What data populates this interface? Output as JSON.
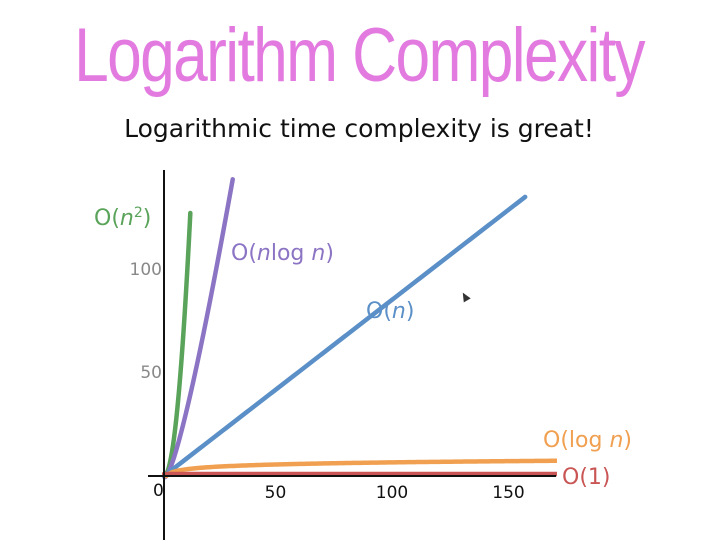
{
  "title": "Logarithm Complexity",
  "subtitle": "Logarithmic time complexity is great!",
  "colors": {
    "title": "#e27ae0",
    "axis": "#111111",
    "tick_text": "#888888"
  },
  "chart_data": {
    "type": "line",
    "title": "",
    "xlabel": "",
    "ylabel": "",
    "xlim": [
      0,
      170
    ],
    "ylim": [
      0,
      135
    ],
    "grid": false,
    "legend": "none",
    "x_ticks": [
      {
        "value": 0,
        "label": "0"
      },
      {
        "value": 50,
        "label": "50"
      },
      {
        "value": 100,
        "label": "100"
      },
      {
        "value": 150,
        "label": "150"
      }
    ],
    "y_ticks": [
      {
        "value": 50,
        "label": "50"
      },
      {
        "value": 100,
        "label": "100"
      }
    ],
    "series": [
      {
        "label_base": "O(",
        "label_var": "n",
        "label_sup": "2",
        "label_tail": ")",
        "color": "#5aa35a",
        "fn": "n2",
        "x": [
          0,
          2,
          4,
          6,
          8,
          10,
          11.3
        ],
        "y": [
          0,
          4,
          16,
          36,
          64,
          100,
          128
        ]
      },
      {
        "label_base": "O(",
        "label_var": "n",
        "label_mid": "log ",
        "label_var2": "n",
        "label_tail": ")",
        "color": "#8c74c4",
        "fn": "nlogn",
        "x": [
          0,
          5,
          10,
          15,
          20,
          25,
          29.5
        ],
        "y": [
          0,
          11.6,
          33.2,
          58.6,
          86.4,
          116.1,
          144.0
        ]
      },
      {
        "label_base": "O(",
        "label_var": "n",
        "label_tail": ")",
        "color": "#5b8fc7",
        "fn": "n",
        "x": [
          0,
          50,
          100,
          150,
          155
        ],
        "y": [
          0,
          43.7,
          87.4,
          131.1,
          135.5
        ]
      },
      {
        "label_base": "O(log ",
        "label_var": "n",
        "label_tail": ")",
        "color": "#f0a050",
        "fn": "logn",
        "x": [
          1,
          10,
          25,
          50,
          100,
          150,
          170
        ],
        "y": [
          0,
          3.3,
          4.6,
          5.6,
          6.6,
          7.2,
          7.4
        ]
      },
      {
        "label_base": "O(1)",
        "color": "#c95555",
        "fn": "const",
        "x": [
          0,
          170
        ],
        "y": [
          1,
          1
        ]
      }
    ]
  }
}
